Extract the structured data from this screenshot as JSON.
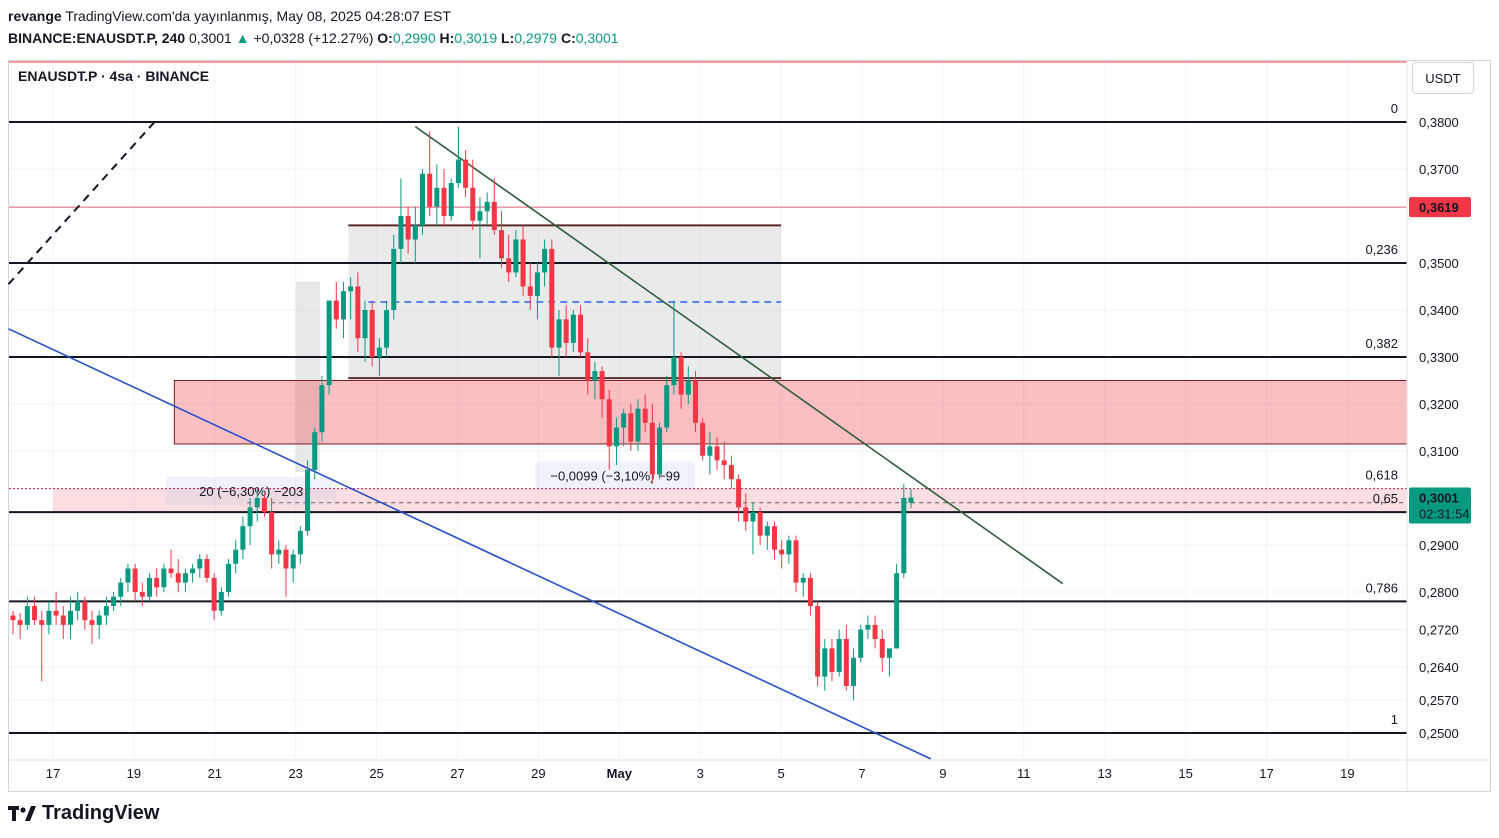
{
  "header": {
    "user": "revange",
    "published": "TradingView.com'da yayınlanmış, May 08, 2025 04:28:07 EST",
    "symbol_line": "BINANCE:ENAUSDT.P, 240",
    "last": "0,3001",
    "change": "+0,0328 (+12.27%)",
    "o_label": "O:",
    "o": "0,2990",
    "h_label": "H:",
    "h": "0,3019",
    "l_label": "L:",
    "l": "0,2979",
    "c_label": "C:",
    "c": "0,3001"
  },
  "legend": "ENAUSDT.P · 4sa · BINANCE",
  "unit_button": "USDT",
  "brand": "TradingView",
  "colors": {
    "up": "#089981",
    "down": "#f23645",
    "accent_red": "#f23645",
    "trend_green": "#2e5e3a",
    "trend_blue": "#2850c8"
  },
  "chart_data": {
    "type": "candlestick",
    "price_axis": {
      "ylim": [
        0.245,
        0.386
      ],
      "ticks": [
        "0,3800",
        "0,3700",
        "0,3500",
        "0,3400",
        "0,3300",
        "0,3200",
        "0,3100",
        "0,2900",
        "0,2800",
        "0,2720",
        "0,2640",
        "0,2570",
        "0,2500"
      ],
      "tick_values": [
        0.38,
        0.37,
        0.35,
        0.34,
        0.33,
        0.32,
        0.31,
        0.29,
        0.28,
        0.272,
        0.264,
        0.257,
        0.25
      ]
    },
    "time_axis": {
      "labels": [
        "17",
        "19",
        "21",
        "23",
        "25",
        "27",
        "29",
        "May",
        "3",
        "5",
        "7",
        "9",
        "11",
        "13",
        "15",
        "17",
        "19"
      ],
      "day_index": [
        0,
        2,
        4,
        6,
        8,
        10,
        12,
        14,
        16,
        18,
        20,
        22,
        24,
        26,
        28,
        30,
        32
      ]
    },
    "fib_levels": [
      {
        "label": "0",
        "value": 0.38
      },
      {
        "label": "0,236",
        "value": 0.35
      },
      {
        "label": "0,382",
        "value": 0.33
      },
      {
        "label": "0,618",
        "value": 0.302
      },
      {
        "label": "0,65",
        "value": 0.297
      },
      {
        "label": "0,786",
        "value": 0.278
      },
      {
        "label": "1",
        "value": 0.25
      }
    ],
    "price_badges": [
      {
        "label": "0,3619",
        "value": 0.3619,
        "color": "#f23645"
      },
      {
        "label": "0,3001",
        "value": 0.3001,
        "color": "#089981",
        "countdown": "02:31:54"
      }
    ],
    "zones": [
      {
        "name": "grey-range",
        "from_day": 7.3,
        "to_day": 18.0,
        "top": 0.358,
        "bottom": 0.3255,
        "mid": 0.3417
      },
      {
        "name": "red-zone",
        "from_day": 3.0,
        "to_day": 34.0,
        "top": 0.325,
        "bottom": 0.3115
      },
      {
        "name": "pink-band",
        "from_day": 0,
        "to_day": 34.0,
        "top": 0.302,
        "bottom": 0.297
      }
    ],
    "measure_labels": [
      {
        "text": "−0,0099 (−3,10%) −99",
        "day": 13.9,
        "value": 0.3048
      },
      {
        "text": "20 (−6,30%) −203",
        "day": 4.9,
        "value": 0.3015
      }
    ],
    "trendlines": [
      {
        "name": "green-down",
        "from": [
          8.96,
          0.379
        ],
        "to": [
          24.96,
          0.2818
        ]
      },
      {
        "name": "blue-channel",
        "from": [
          -1.1,
          0.336
        ],
        "to": [
          21.7,
          0.2445
        ]
      },
      {
        "name": "black-dashed",
        "from": [
          -1.1,
          0.3455
        ],
        "to": [
          2.51,
          0.38
        ]
      }
    ],
    "candles_ohlc": [
      [
        0.275,
        0.276,
        0.271,
        0.274
      ],
      [
        0.274,
        0.2755,
        0.27,
        0.273
      ],
      [
        0.273,
        0.279,
        0.272,
        0.277
      ],
      [
        0.277,
        0.279,
        0.273,
        0.274
      ],
      [
        0.274,
        0.276,
        0.261,
        0.273
      ],
      [
        0.273,
        0.278,
        0.271,
        0.276
      ],
      [
        0.276,
        0.28,
        0.273,
        0.275
      ],
      [
        0.275,
        0.277,
        0.27,
        0.273
      ],
      [
        0.273,
        0.279,
        0.27,
        0.276
      ],
      [
        0.276,
        0.28,
        0.274,
        0.278
      ],
      [
        0.278,
        0.279,
        0.272,
        0.274
      ],
      [
        0.274,
        0.276,
        0.269,
        0.273
      ],
      [
        0.273,
        0.276,
        0.27,
        0.275
      ],
      [
        0.275,
        0.279,
        0.273,
        0.277
      ],
      [
        0.277,
        0.28,
        0.276,
        0.279
      ],
      [
        0.279,
        0.283,
        0.277,
        0.282
      ],
      [
        0.282,
        0.286,
        0.28,
        0.285
      ],
      [
        0.285,
        0.286,
        0.278,
        0.28
      ],
      [
        0.28,
        0.282,
        0.277,
        0.279
      ],
      [
        0.279,
        0.284,
        0.278,
        0.283
      ],
      [
        0.283,
        0.285,
        0.279,
        0.281
      ],
      [
        0.281,
        0.286,
        0.28,
        0.285
      ],
      [
        0.285,
        0.289,
        0.283,
        0.284
      ],
      [
        0.284,
        0.287,
        0.28,
        0.282
      ],
      [
        0.282,
        0.285,
        0.28,
        0.284
      ],
      [
        0.284,
        0.286,
        0.282,
        0.285
      ],
      [
        0.285,
        0.288,
        0.283,
        0.287
      ],
      [
        0.287,
        0.288,
        0.282,
        0.283
      ],
      [
        0.283,
        0.284,
        0.274,
        0.276
      ],
      [
        0.276,
        0.281,
        0.275,
        0.28
      ],
      [
        0.28,
        0.287,
        0.279,
        0.286
      ],
      [
        0.286,
        0.291,
        0.284,
        0.289
      ],
      [
        0.289,
        0.296,
        0.287,
        0.294
      ],
      [
        0.294,
        0.3,
        0.29,
        0.298
      ],
      [
        0.298,
        0.302,
        0.295,
        0.3
      ],
      [
        0.3,
        0.301,
        0.296,
        0.297
      ],
      [
        0.297,
        0.3,
        0.285,
        0.288
      ],
      [
        0.288,
        0.291,
        0.286,
        0.289
      ],
      [
        0.289,
        0.29,
        0.279,
        0.285
      ],
      [
        0.285,
        0.289,
        0.282,
        0.288
      ],
      [
        0.288,
        0.294,
        0.286,
        0.293
      ],
      [
        0.293,
        0.308,
        0.292,
        0.306
      ],
      [
        0.306,
        0.315,
        0.304,
        0.314
      ],
      [
        0.314,
        0.326,
        0.312,
        0.324
      ],
      [
        0.324,
        0.338,
        0.322,
        0.342
      ],
      [
        0.342,
        0.346,
        0.336,
        0.338
      ],
      [
        0.338,
        0.346,
        0.334,
        0.344
      ],
      [
        0.344,
        0.347,
        0.338,
        0.345
      ],
      [
        0.345,
        0.348,
        0.331,
        0.334
      ],
      [
        0.334,
        0.342,
        0.329,
        0.34
      ],
      [
        0.34,
        0.342,
        0.328,
        0.33
      ],
      [
        0.33,
        0.334,
        0.326,
        0.332
      ],
      [
        0.332,
        0.342,
        0.33,
        0.34
      ],
      [
        0.34,
        0.356,
        0.338,
        0.353
      ],
      [
        0.353,
        0.368,
        0.35,
        0.36
      ],
      [
        0.36,
        0.362,
        0.352,
        0.355
      ],
      [
        0.355,
        0.362,
        0.35,
        0.358
      ],
      [
        0.358,
        0.37,
        0.356,
        0.369
      ],
      [
        0.369,
        0.378,
        0.36,
        0.362
      ],
      [
        0.362,
        0.371,
        0.358,
        0.366
      ],
      [
        0.366,
        0.37,
        0.358,
        0.36
      ],
      [
        0.36,
        0.368,
        0.359,
        0.367
      ],
      [
        0.367,
        0.379,
        0.366,
        0.372
      ],
      [
        0.372,
        0.374,
        0.364,
        0.366
      ],
      [
        0.366,
        0.372,
        0.357,
        0.359
      ],
      [
        0.359,
        0.364,
        0.351,
        0.361
      ],
      [
        0.361,
        0.365,
        0.358,
        0.363
      ],
      [
        0.363,
        0.368,
        0.356,
        0.357
      ],
      [
        0.357,
        0.361,
        0.349,
        0.351
      ],
      [
        0.351,
        0.356,
        0.346,
        0.348
      ],
      [
        0.348,
        0.357,
        0.347,
        0.355
      ],
      [
        0.355,
        0.358,
        0.343,
        0.345
      ],
      [
        0.345,
        0.35,
        0.34,
        0.343
      ],
      [
        0.343,
        0.35,
        0.338,
        0.348
      ],
      [
        0.348,
        0.355,
        0.345,
        0.353
      ],
      [
        0.353,
        0.355,
        0.33,
        0.332
      ],
      [
        0.332,
        0.34,
        0.326,
        0.338
      ],
      [
        0.338,
        0.341,
        0.33,
        0.333
      ],
      [
        0.333,
        0.34,
        0.331,
        0.339
      ],
      [
        0.339,
        0.341,
        0.33,
        0.331
      ],
      [
        0.331,
        0.334,
        0.322,
        0.325
      ],
      [
        0.325,
        0.329,
        0.321,
        0.327
      ],
      [
        0.327,
        0.328,
        0.317,
        0.321
      ],
      [
        0.321,
        0.323,
        0.306,
        0.311
      ],
      [
        0.311,
        0.317,
        0.307,
        0.315
      ],
      [
        0.315,
        0.319,
        0.311,
        0.318
      ],
      [
        0.318,
        0.32,
        0.31,
        0.312
      ],
      [
        0.312,
        0.321,
        0.31,
        0.319
      ],
      [
        0.319,
        0.322,
        0.314,
        0.316
      ],
      [
        0.316,
        0.32,
        0.303,
        0.305
      ],
      [
        0.305,
        0.316,
        0.304,
        0.315
      ],
      [
        0.315,
        0.326,
        0.314,
        0.324
      ],
      [
        0.324,
        0.342,
        0.322,
        0.33
      ],
      [
        0.33,
        0.331,
        0.319,
        0.322
      ],
      [
        0.322,
        0.328,
        0.32,
        0.325
      ],
      [
        0.325,
        0.327,
        0.314,
        0.316
      ],
      [
        0.316,
        0.317,
        0.308,
        0.309
      ],
      [
        0.309,
        0.314,
        0.305,
        0.311
      ],
      [
        0.311,
        0.313,
        0.306,
        0.308
      ],
      [
        0.308,
        0.312,
        0.304,
        0.307
      ],
      [
        0.307,
        0.309,
        0.302,
        0.304
      ],
      [
        0.304,
        0.305,
        0.295,
        0.298
      ],
      [
        0.298,
        0.301,
        0.293,
        0.295
      ],
      [
        0.295,
        0.299,
        0.288,
        0.297
      ],
      [
        0.297,
        0.298,
        0.29,
        0.292
      ],
      [
        0.292,
        0.295,
        0.289,
        0.294
      ],
      [
        0.294,
        0.295,
        0.287,
        0.289
      ],
      [
        0.289,
        0.291,
        0.285,
        0.288
      ],
      [
        0.288,
        0.292,
        0.286,
        0.291
      ],
      [
        0.291,
        0.292,
        0.28,
        0.282
      ],
      [
        0.282,
        0.284,
        0.279,
        0.283
      ],
      [
        0.283,
        0.284,
        0.275,
        0.277
      ],
      [
        0.277,
        0.278,
        0.26,
        0.262
      ],
      [
        0.262,
        0.27,
        0.259,
        0.268
      ],
      [
        0.268,
        0.27,
        0.261,
        0.263
      ],
      [
        0.263,
        0.272,
        0.262,
        0.27
      ],
      [
        0.27,
        0.273,
        0.259,
        0.26
      ],
      [
        0.26,
        0.268,
        0.257,
        0.266
      ],
      [
        0.266,
        0.273,
        0.265,
        0.272
      ],
      [
        0.272,
        0.275,
        0.27,
        0.273
      ],
      [
        0.273,
        0.275,
        0.268,
        0.27
      ],
      [
        0.27,
        0.272,
        0.263,
        0.266
      ],
      [
        0.266,
        0.268,
        0.262,
        0.268
      ],
      [
        0.268,
        0.286,
        0.268,
        0.284
      ],
      [
        0.284,
        0.303,
        0.283,
        0.3
      ],
      [
        0.299,
        0.3019,
        0.2979,
        0.3001
      ]
    ]
  }
}
